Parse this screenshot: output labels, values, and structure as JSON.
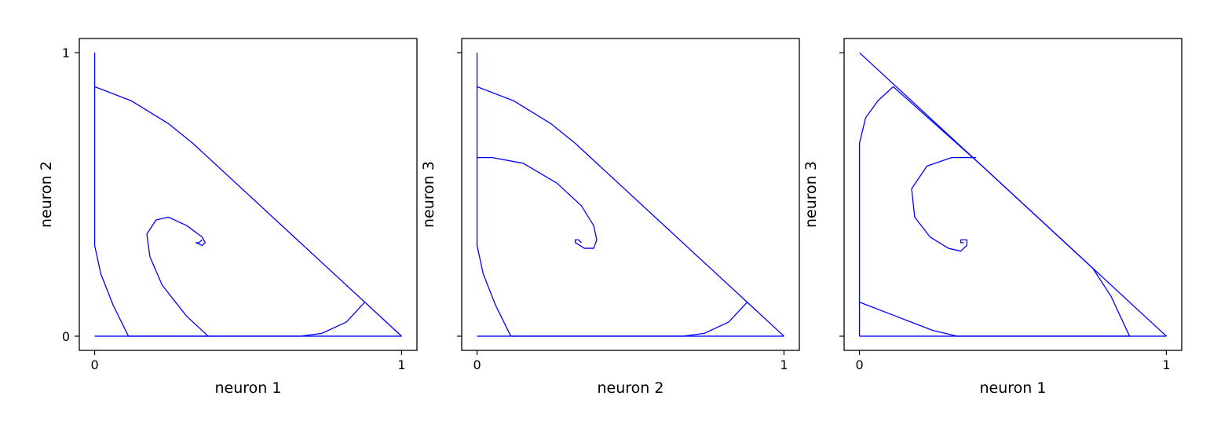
{
  "chart_data": [
    {
      "type": "line",
      "xlabel": "neuron 1",
      "ylabel": "neuron 2",
      "xlim": [
        -0.05,
        1.05
      ],
      "ylim": [
        -0.05,
        1.05
      ],
      "xticks": [
        {
          "value": 0,
          "label": "0"
        },
        {
          "value": 1,
          "label": "1"
        }
      ],
      "yticks": [
        {
          "value": 0,
          "label": "0"
        },
        {
          "value": 1,
          "label": "1"
        }
      ],
      "grid": false,
      "line_color": "#0000ff",
      "series": [
        {
          "x": [
            0,
            0,
            0,
            0.02,
            0.06,
            0.11
          ],
          "y": [
            1,
            0.88,
            0.32,
            0.22,
            0.11,
            0
          ]
        },
        {
          "x": [
            0,
            0.12,
            0.24,
            0.32,
            0.6,
            0.88,
            1.0
          ],
          "y": [
            0.88,
            0.83,
            0.75,
            0.68,
            0.4,
            0.12,
            0
          ]
        },
        {
          "x": [
            0,
            1
          ],
          "y": [
            0,
            0
          ]
        },
        {
          "x": [
            0.11,
            0.4,
            0.67,
            0.74,
            0.82,
            0.88
          ],
          "y": [
            0,
            0,
            0,
            0.01,
            0.05,
            0.12
          ]
        },
        {
          "x": [
            0.37,
            0.3,
            0.22,
            0.18,
            0.17,
            0.2,
            0.24,
            0.3,
            0.35,
            0.36,
            0.35,
            0.33,
            0.34,
            0.35
          ],
          "y": [
            0,
            0.07,
            0.18,
            0.28,
            0.36,
            0.41,
            0.42,
            0.39,
            0.35,
            0.33,
            0.32,
            0.33,
            0.33,
            0.34
          ]
        }
      ]
    },
    {
      "type": "line",
      "xlabel": "neuron 2",
      "ylabel": "neuron 3",
      "xlim": [
        -0.05,
        1.05
      ],
      "ylim": [
        -0.05,
        1.05
      ],
      "xticks": [
        {
          "value": 0,
          "label": "0"
        },
        {
          "value": 1,
          "label": "1"
        }
      ],
      "yticks": [
        {
          "value": 0,
          "label": ""
        },
        {
          "value": 1,
          "label": ""
        }
      ],
      "grid": false,
      "line_color": "#0000ff",
      "series": [
        {
          "x": [
            0,
            0,
            0,
            0.02,
            0.06,
            0.11
          ],
          "y": [
            1,
            0.88,
            0.32,
            0.22,
            0.11,
            0
          ]
        },
        {
          "x": [
            0,
            0.12,
            0.24,
            0.32,
            0.6,
            0.88,
            1.0
          ],
          "y": [
            0.88,
            0.83,
            0.75,
            0.68,
            0.4,
            0.12,
            0
          ]
        },
        {
          "x": [
            0,
            1
          ],
          "y": [
            0,
            0
          ]
        },
        {
          "x": [
            0.11,
            0.4,
            0.67,
            0.74,
            0.82,
            0.88
          ],
          "y": [
            0,
            0,
            0,
            0.01,
            0.05,
            0.12
          ]
        },
        {
          "x": [
            0,
            0.05,
            0.15,
            0.26,
            0.34,
            0.38,
            0.39,
            0.38,
            0.35,
            0.32,
            0.32,
            0.33,
            0.34
          ],
          "y": [
            0.63,
            0.63,
            0.61,
            0.54,
            0.46,
            0.39,
            0.34,
            0.31,
            0.31,
            0.33,
            0.34,
            0.34,
            0.33
          ]
        }
      ]
    },
    {
      "type": "line",
      "xlabel": "neuron 1",
      "ylabel": "neuron 3",
      "xlim": [
        -0.05,
        1.05
      ],
      "ylim": [
        -0.05,
        1.05
      ],
      "xticks": [
        {
          "value": 0,
          "label": "0"
        },
        {
          "value": 1,
          "label": "1"
        }
      ],
      "yticks": [
        {
          "value": 0,
          "label": ""
        },
        {
          "value": 1,
          "label": ""
        }
      ],
      "grid": false,
      "line_color": "#0000ff",
      "series": [
        {
          "x": [
            0,
            1
          ],
          "y": [
            1,
            0
          ]
        },
        {
          "x": [
            0,
            0,
            0,
            0.02,
            0.06,
            0.11
          ],
          "y": [
            0,
            0.12,
            0.68,
            0.77,
            0.83,
            0.88
          ]
        },
        {
          "x": [
            0.11,
            0.4,
            0.68,
            0.76,
            0.82,
            0.88
          ],
          "y": [
            0.88,
            0.6,
            0.32,
            0.24,
            0.14,
            0
          ]
        },
        {
          "x": [
            0,
            1
          ],
          "y": [
            0,
            0
          ]
        },
        {
          "x": [
            0,
            0.12,
            0.24,
            0.32,
            0.88
          ],
          "y": [
            0.12,
            0.07,
            0.02,
            0,
            0
          ]
        },
        {
          "x": [
            0.38,
            0.3,
            0.22,
            0.17,
            0.18,
            0.23,
            0.29,
            0.33,
            0.35,
            0.35,
            0.33,
            0.33,
            0.34
          ],
          "y": [
            0.63,
            0.63,
            0.6,
            0.52,
            0.42,
            0.35,
            0.31,
            0.3,
            0.32,
            0.34,
            0.34,
            0.33,
            0.33
          ]
        }
      ]
    }
  ]
}
